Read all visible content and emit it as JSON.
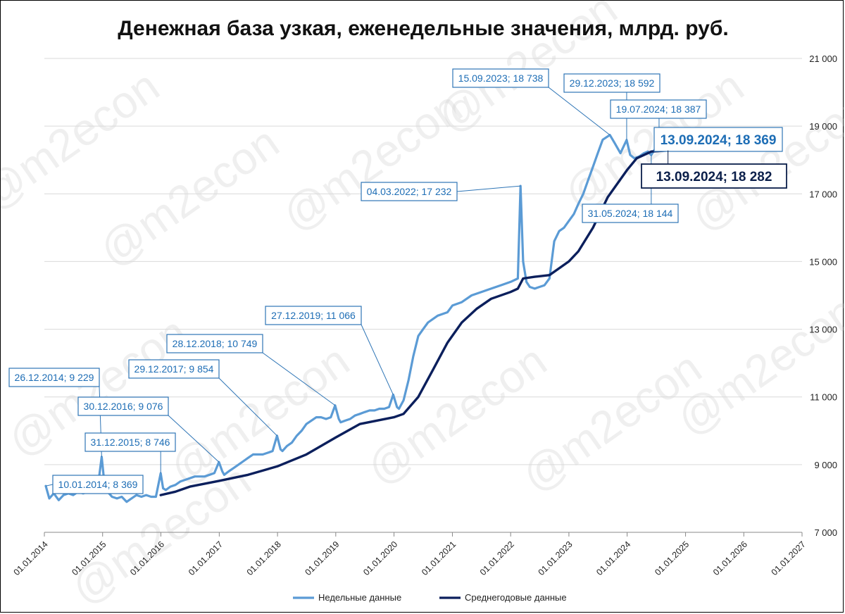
{
  "chart_data": {
    "type": "line",
    "title": "Денежная база узкая, еженедельные значения, млрд. руб.",
    "xlabel": "",
    "ylabel": "",
    "ylim": [
      7000,
      21000
    ],
    "y_ticks": [
      7000,
      9000,
      11000,
      13000,
      15000,
      17000,
      19000,
      21000
    ],
    "y_tick_labels": [
      "7 000",
      "9 000",
      "11 000",
      "13 000",
      "15 000",
      "17 000",
      "19 000",
      "21 000"
    ],
    "x_range": [
      "2014-01-01",
      "2027-01-01"
    ],
    "x_ticks": [
      "2014-01-01",
      "2015-01-01",
      "2016-01-01",
      "2017-01-01",
      "2018-01-01",
      "2019-01-01",
      "2020-01-01",
      "2021-01-01",
      "2022-01-01",
      "2023-01-01",
      "2024-01-01",
      "2025-01-01",
      "2026-01-01",
      "2027-01-01"
    ],
    "x_tick_labels": [
      "01.01.2014",
      "01.01.2015",
      "01.01.2016",
      "01.01.2017",
      "01.01.2018",
      "01.01.2019",
      "01.01.2020",
      "01.01.2021",
      "01.01.2022",
      "01.01.2023",
      "01.01.2024",
      "01.01.2025",
      "01.01.2026",
      "01.01.2027"
    ],
    "grid": "horizontal",
    "y_axis_side": "right",
    "legend_position": "bottom",
    "series": [
      {
        "name": "Недельные данные",
        "color": "#5b9bd5",
        "points": [
          [
            "2014-01-10",
            8369
          ],
          [
            "2014-02-01",
            8000
          ],
          [
            "2014-03-01",
            8150
          ],
          [
            "2014-04-01",
            7950
          ],
          [
            "2014-05-01",
            8100
          ],
          [
            "2014-06-01",
            8150
          ],
          [
            "2014-07-01",
            8100
          ],
          [
            "2014-08-01",
            8200
          ],
          [
            "2014-09-01",
            8150
          ],
          [
            "2014-10-01",
            8200
          ],
          [
            "2014-11-01",
            8250
          ],
          [
            "2014-12-01",
            8300
          ],
          [
            "2014-12-26",
            9229
          ],
          [
            "2015-01-09",
            8600
          ],
          [
            "2015-02-01",
            8200
          ],
          [
            "2015-03-01",
            8050
          ],
          [
            "2015-04-01",
            8000
          ],
          [
            "2015-05-01",
            8050
          ],
          [
            "2015-06-01",
            7900
          ],
          [
            "2015-07-01",
            8000
          ],
          [
            "2015-08-01",
            8100
          ],
          [
            "2015-09-01",
            8050
          ],
          [
            "2015-10-01",
            8100
          ],
          [
            "2015-11-01",
            8050
          ],
          [
            "2015-12-01",
            8050
          ],
          [
            "2015-12-31",
            8746
          ],
          [
            "2016-01-15",
            8300
          ],
          [
            "2016-02-01",
            8250
          ],
          [
            "2016-03-01",
            8350
          ],
          [
            "2016-04-01",
            8400
          ],
          [
            "2016-05-01",
            8500
          ],
          [
            "2016-06-01",
            8550
          ],
          [
            "2016-07-01",
            8600
          ],
          [
            "2016-08-01",
            8650
          ],
          [
            "2016-09-01",
            8650
          ],
          [
            "2016-10-01",
            8650
          ],
          [
            "2016-11-01",
            8700
          ],
          [
            "2016-12-01",
            8750
          ],
          [
            "2016-12-30",
            9076
          ],
          [
            "2017-01-20",
            8800
          ],
          [
            "2017-02-01",
            8700
          ],
          [
            "2017-03-01",
            8800
          ],
          [
            "2017-04-01",
            8900
          ],
          [
            "2017-05-01",
            9000
          ],
          [
            "2017-06-01",
            9100
          ],
          [
            "2017-07-01",
            9200
          ],
          [
            "2017-08-01",
            9300
          ],
          [
            "2017-09-01",
            9300
          ],
          [
            "2017-10-01",
            9300
          ],
          [
            "2017-11-01",
            9350
          ],
          [
            "2017-12-01",
            9400
          ],
          [
            "2017-12-29",
            9854
          ],
          [
            "2018-01-20",
            9450
          ],
          [
            "2018-02-01",
            9400
          ],
          [
            "2018-03-01",
            9550
          ],
          [
            "2018-04-01",
            9650
          ],
          [
            "2018-05-01",
            9850
          ],
          [
            "2018-06-01",
            10000
          ],
          [
            "2018-07-01",
            10200
          ],
          [
            "2018-08-01",
            10300
          ],
          [
            "2018-09-01",
            10400
          ],
          [
            "2018-10-01",
            10400
          ],
          [
            "2018-11-01",
            10350
          ],
          [
            "2018-12-01",
            10400
          ],
          [
            "2018-12-28",
            10749
          ],
          [
            "2019-01-20",
            10350
          ],
          [
            "2019-02-01",
            10250
          ],
          [
            "2019-03-01",
            10300
          ],
          [
            "2019-04-01",
            10350
          ],
          [
            "2019-05-01",
            10450
          ],
          [
            "2019-06-01",
            10500
          ],
          [
            "2019-07-01",
            10550
          ],
          [
            "2019-08-01",
            10600
          ],
          [
            "2019-09-01",
            10600
          ],
          [
            "2019-10-01",
            10650
          ],
          [
            "2019-11-01",
            10650
          ],
          [
            "2019-12-01",
            10700
          ],
          [
            "2019-12-27",
            11066
          ],
          [
            "2020-01-20",
            10700
          ],
          [
            "2020-02-01",
            10650
          ],
          [
            "2020-03-01",
            10900
          ],
          [
            "2020-04-01",
            11500
          ],
          [
            "2020-05-01",
            12200
          ],
          [
            "2020-06-01",
            12800
          ],
          [
            "2020-07-01",
            13000
          ],
          [
            "2020-08-01",
            13200
          ],
          [
            "2020-09-01",
            13300
          ],
          [
            "2020-10-01",
            13400
          ],
          [
            "2020-11-01",
            13450
          ],
          [
            "2020-12-01",
            13500
          ],
          [
            "2021-01-01",
            13700
          ],
          [
            "2021-03-01",
            13800
          ],
          [
            "2021-05-01",
            14000
          ],
          [
            "2021-07-01",
            14100
          ],
          [
            "2021-09-01",
            14200
          ],
          [
            "2021-11-01",
            14300
          ],
          [
            "2022-01-01",
            14400
          ],
          [
            "2022-02-15",
            14500
          ],
          [
            "2022-03-04",
            17232
          ],
          [
            "2022-03-20",
            15000
          ],
          [
            "2022-04-10",
            14400
          ],
          [
            "2022-05-01",
            14250
          ],
          [
            "2022-06-01",
            14200
          ],
          [
            "2022-07-01",
            14250
          ],
          [
            "2022-08-01",
            14300
          ],
          [
            "2022-09-01",
            14500
          ],
          [
            "2022-10-01",
            15600
          ],
          [
            "2022-11-01",
            15900
          ],
          [
            "2022-12-01",
            16000
          ],
          [
            "2023-01-01",
            16200
          ],
          [
            "2023-02-01",
            16400
          ],
          [
            "2023-03-01",
            16700
          ],
          [
            "2023-04-01",
            17000
          ],
          [
            "2023-05-01",
            17400
          ],
          [
            "2023-06-01",
            17800
          ],
          [
            "2023-07-01",
            18200
          ],
          [
            "2023-08-01",
            18600
          ],
          [
            "2023-09-15",
            18738
          ],
          [
            "2023-10-15",
            18500
          ],
          [
            "2023-11-20",
            18200
          ],
          [
            "2023-12-29",
            18592
          ],
          [
            "2024-01-20",
            18150
          ],
          [
            "2024-02-15",
            18050
          ],
          [
            "2024-03-15",
            18100
          ],
          [
            "2024-04-15",
            18200
          ],
          [
            "2024-05-10",
            18250
          ],
          [
            "2024-05-31",
            18144
          ],
          [
            "2024-06-20",
            18300
          ],
          [
            "2024-07-19",
            18387
          ],
          [
            "2024-08-15",
            18350
          ],
          [
            "2024-09-13",
            18369
          ]
        ]
      },
      {
        "name": "Среднегодовые данные",
        "color": "#0b1f5c",
        "points": [
          [
            "2015-12-31",
            8100
          ],
          [
            "2016-04-01",
            8200
          ],
          [
            "2016-07-01",
            8350
          ],
          [
            "2016-12-31",
            8520
          ],
          [
            "2017-07-01",
            8700
          ],
          [
            "2017-12-31",
            8950
          ],
          [
            "2018-07-01",
            9300
          ],
          [
            "2018-12-31",
            9800
          ],
          [
            "2019-06-01",
            10200
          ],
          [
            "2019-12-31",
            10400
          ],
          [
            "2020-03-01",
            10500
          ],
          [
            "2020-06-01",
            11000
          ],
          [
            "2020-09-01",
            11800
          ],
          [
            "2020-12-01",
            12600
          ],
          [
            "2021-03-01",
            13200
          ],
          [
            "2021-06-01",
            13600
          ],
          [
            "2021-09-01",
            13900
          ],
          [
            "2021-12-31",
            14100
          ],
          [
            "2022-02-15",
            14200
          ],
          [
            "2022-03-20",
            14500
          ],
          [
            "2022-06-01",
            14550
          ],
          [
            "2022-09-01",
            14600
          ],
          [
            "2022-12-31",
            15000
          ],
          [
            "2023-03-01",
            15300
          ],
          [
            "2023-06-01",
            16000
          ],
          [
            "2023-09-01",
            16900
          ],
          [
            "2023-12-31",
            17700
          ],
          [
            "2024-03-01",
            18050
          ],
          [
            "2024-06-01",
            18250
          ],
          [
            "2024-09-13",
            18282
          ]
        ]
      }
    ],
    "annotations": [
      {
        "label": "10.01.2014; 8 369",
        "date": "2014-01-10",
        "value": 8369,
        "style": "small"
      },
      {
        "label": "26.12.2014; 9 229",
        "date": "2014-12-26",
        "value": 9229,
        "style": "small"
      },
      {
        "label": "31.12.2015; 8 746",
        "date": "2015-12-31",
        "value": 8746,
        "style": "small"
      },
      {
        "label": "30.12.2016; 9 076",
        "date": "2016-12-30",
        "value": 9076,
        "style": "small"
      },
      {
        "label": "29.12.2017; 9 854",
        "date": "2017-12-29",
        "value": 9854,
        "style": "small"
      },
      {
        "label": "28.12.2018; 10 749",
        "date": "2018-12-28",
        "value": 10749,
        "style": "small"
      },
      {
        "label": "27.12.2019; 11 066",
        "date": "2019-12-27",
        "value": 11066,
        "style": "small"
      },
      {
        "label": "04.03.2022; 17 232",
        "date": "2022-03-04",
        "value": 17232,
        "style": "small"
      },
      {
        "label": "15.09.2023; 18 738",
        "date": "2023-09-15",
        "value": 18738,
        "style": "small"
      },
      {
        "label": "29.12.2023; 18 592",
        "date": "2023-12-29",
        "value": 18592,
        "style": "small"
      },
      {
        "label": "19.07.2024; 18 387",
        "date": "2024-07-19",
        "value": 18387,
        "style": "small"
      },
      {
        "label": "31.05.2024; 18 144",
        "date": "2024-05-31",
        "value": 18144,
        "style": "small"
      },
      {
        "label": "13.09.2024; 18 369",
        "date": "2024-09-13",
        "value": 18369,
        "style": "big"
      },
      {
        "label": "13.09.2024; 18 282",
        "date": "2024-09-13",
        "value": 18282,
        "style": "dark"
      }
    ],
    "watermark": "@m2econ"
  }
}
